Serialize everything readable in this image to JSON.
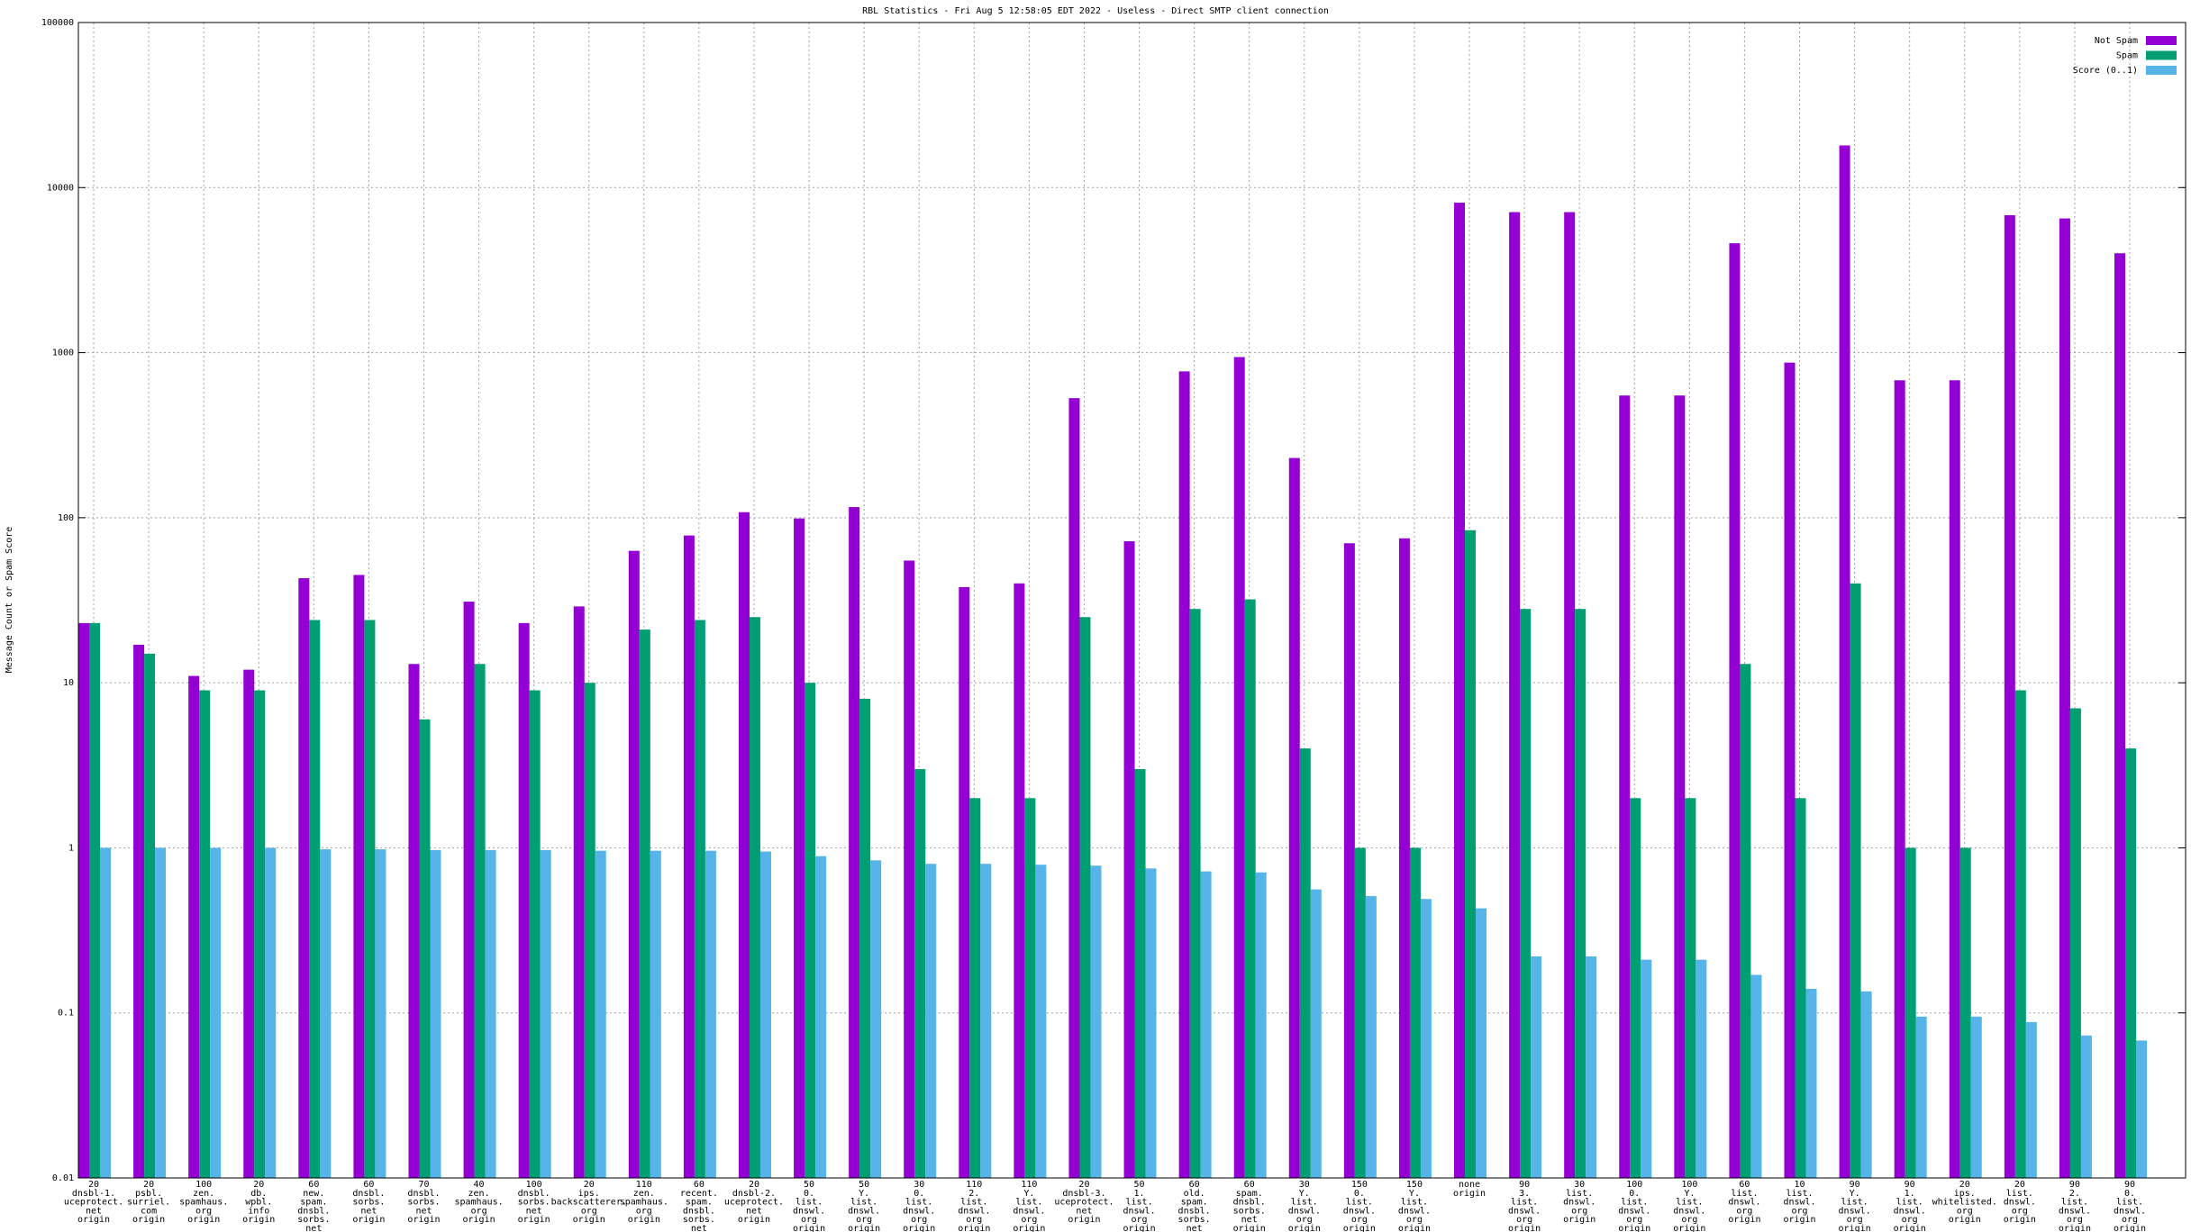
{
  "chart_data": {
    "type": "bar",
    "title": "RBL Statistics - Fri Aug  5 12:58:05 EDT 2022 - Useless - Direct SMTP client connection",
    "y_label": "Message Count or Spam Score",
    "log_scale": true,
    "grid": true,
    "legend_position": "top-right",
    "ylim": [
      0.01,
      100000
    ],
    "yticks": [
      0.01,
      0.1,
      1,
      10,
      100,
      1000,
      10000,
      100000
    ],
    "categories": [
      "20\ndnsbl-1.\nuceprotect.\nnet\norigin",
      "20\npsbl.\nsurriel.\ncom\norigin",
      "100\nzen.\nspamhaus.\norg\norigin",
      "20\ndb.\nwpbl.\ninfo\norigin",
      "60\nnew.\nspam.\ndnsbl.\nsorbs.\nnet\norigin",
      "60\ndnsbl.\nsorbs.\nnet\norigin",
      "70\ndnsbl.\nsorbs.\nnet\norigin",
      "40\nzen.\nspamhaus.\norg\norigin",
      "100\ndnsbl.\nsorbs.\nnet\norigin",
      "20\nips.\nbackscatterer.\norg\norigin",
      "110\nzen.\nspamhaus.\norg\norigin",
      "60\nrecent.\nspam.\ndnsbl.\nsorbs.\nnet\norigin",
      "20\ndnsbl-2.\nuceprotect.\nnet\norigin",
      "50\n0.\nlist.\ndnswl.\norg\norigin",
      "50\nY.\nlist.\ndnswl.\norg\norigin",
      "30\n0.\nlist.\ndnswl.\norg\norigin",
      "110\n2.\nlist.\ndnswl.\norg\norigin",
      "110\nY.\nlist.\ndnswl.\norg\norigin",
      "20\ndnsbl-3.\nuceprotect.\nnet\norigin",
      "50\n1.\nlist.\ndnswl.\norg\norigin",
      "60\nold.\nspam.\ndnsbl.\nsorbs.\nnet\norigin",
      "60\nspam.\ndnsbl.\nsorbs.\nnet\norigin",
      "30\nY.\nlist.\ndnswl.\norg\norigin",
      "150\n0.\nlist.\ndnswl.\norg\norigin",
      "150\nY.\nlist.\ndnswl.\norg\norigin",
      "none\norigin",
      "90\n3.\nlist.\ndnswl.\norg\norigin",
      "30\nlist.\ndnswl.\norg\norigin",
      "100\n0.\nlist.\ndnswl.\norg\norigin",
      "100\nY.\nlist.\ndnswl.\norg\norigin",
      "60\nlist.\ndnswl.\norg\norigin",
      "10\nlist.\ndnswl.\norg\norigin",
      "90\nY.\nlist.\ndnswl.\norg\norigin",
      "90\n1.\nlist.\ndnswl.\norg\norigin",
      "20\nips.\nwhitelisted.\norg\norigin",
      "20\nlist.\ndnswl.\norg\norigin",
      "90\n2.\nlist.\ndnswl.\norg\norigin",
      "90\n0.\nlist.\ndnswl.\norg\norigin"
    ],
    "series": [
      {
        "name": "Not Spam",
        "color": "#9400d3",
        "values": [
          23,
          17,
          11,
          12,
          43,
          45,
          13,
          31,
          23,
          29,
          63,
          78,
          108,
          99,
          116,
          55,
          38,
          40,
          530,
          72,
          770,
          940,
          230,
          70,
          75,
          8100,
          7100,
          7100,
          550,
          550,
          4600,
          870,
          18000,
          680,
          680,
          6800,
          6500,
          4000
        ]
      },
      {
        "name": "Spam",
        "color": "#009e73",
        "values": [
          23,
          15,
          9,
          9,
          24,
          24,
          6,
          13,
          9,
          10,
          21,
          24,
          25,
          10,
          8,
          3,
          2,
          2,
          25,
          3,
          28,
          32,
          4,
          1,
          1,
          84,
          28,
          28,
          2,
          2,
          13,
          2,
          40,
          1,
          1,
          9,
          7,
          4
        ]
      },
      {
        "name": "Score (0..1)",
        "color": "#56b4e9",
        "values": [
          1,
          1,
          1,
          1,
          0.98,
          0.98,
          0.97,
          0.97,
          0.97,
          0.96,
          0.96,
          0.96,
          0.95,
          0.89,
          0.84,
          0.8,
          0.8,
          0.79,
          0.78,
          0.75,
          0.72,
          0.71,
          0.56,
          0.51,
          0.49,
          0.43,
          0.22,
          0.22,
          0.21,
          0.21,
          0.17,
          0.14,
          0.135,
          0.095,
          0.095,
          0.088,
          0.073,
          0.068
        ]
      }
    ]
  }
}
